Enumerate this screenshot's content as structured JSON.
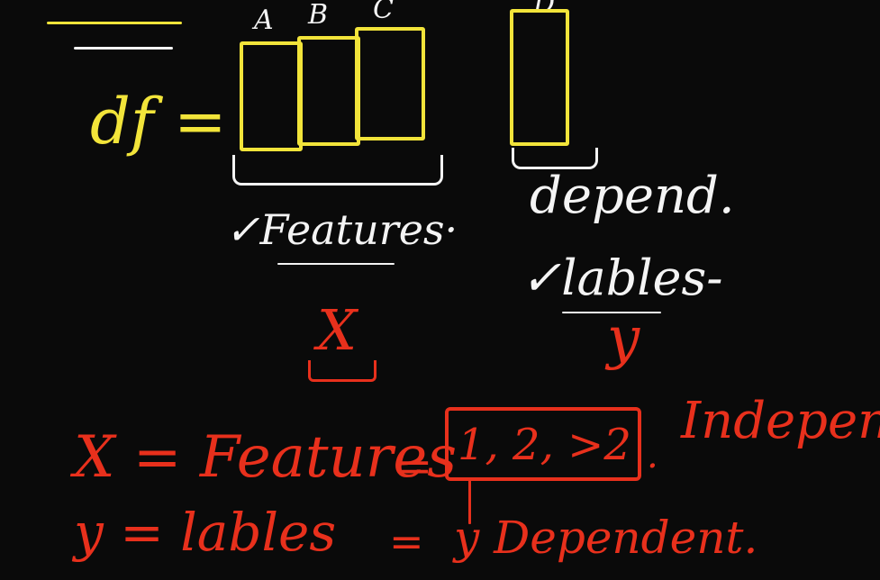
{
  "df_label": "df =",
  "columns": {
    "a": "A",
    "b": "B",
    "c": "C",
    "d": "D"
  },
  "features_label": "✓Features·",
  "depend_label": "depend.",
  "lables_label": "✓lables-",
  "x_symbol": "X",
  "y_symbol": "y",
  "line1": {
    "lhs": "X = Features",
    "eq": "=",
    "box_text": "1, 2, >2",
    "dot": ".",
    "rhs": "Independ"
  },
  "line2": {
    "lhs": "y = lables",
    "eq": "=",
    "rhs": "y Dependent."
  },
  "colors": {
    "yellow": "#f2e43a",
    "white": "#f4f4f4",
    "red": "#e8301c",
    "board": "#0a0a0a"
  }
}
